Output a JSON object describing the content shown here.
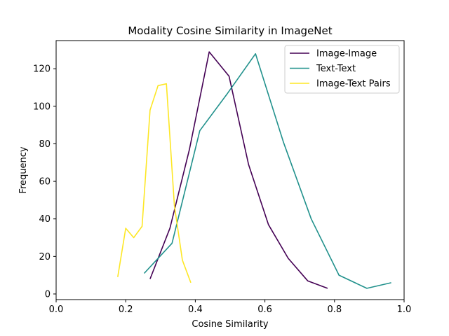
{
  "chart_data": {
    "type": "line",
    "title": "Modality Cosine Similarity in ImageNet",
    "xlabel": "Cosine Similarity",
    "ylabel": "Frequency",
    "xlim": [
      0.0,
      1.0
    ],
    "ylim": [
      -3,
      135
    ],
    "xticks": [
      0.0,
      0.2,
      0.4,
      0.6,
      0.8,
      1.0
    ],
    "xtick_labels": [
      "0.0",
      "0.2",
      "0.4",
      "0.6",
      "0.8",
      "1.0"
    ],
    "yticks": [
      0,
      20,
      40,
      60,
      80,
      100,
      120
    ],
    "ytick_labels": [
      "0",
      "20",
      "40",
      "60",
      "80",
      "100",
      "120"
    ],
    "grid": false,
    "legend_position": "top-right",
    "series": [
      {
        "name": "Image-Image",
        "color": "#440154",
        "x": [
          0.27,
          0.327,
          0.383,
          0.44,
          0.497,
          0.553,
          0.61,
          0.667,
          0.723,
          0.78
        ],
        "y": [
          8,
          35,
          77,
          129,
          116,
          69,
          37,
          19,
          7,
          3
        ]
      },
      {
        "name": "Text-Text",
        "color": "#21918c",
        "x": [
          0.253,
          0.333,
          0.413,
          0.493,
          0.573,
          0.653,
          0.733,
          0.813,
          0.893,
          0.963
        ],
        "y": [
          11,
          27,
          87,
          107,
          128,
          81,
          40,
          10,
          3,
          6
        ]
      },
      {
        "name": "Image-Text Pairs",
        "color": "#fde725",
        "x": [
          0.177,
          0.2,
          0.223,
          0.247,
          0.27,
          0.293,
          0.317,
          0.34,
          0.363,
          0.387
        ],
        "y": [
          9,
          35,
          30,
          36,
          98,
          111,
          112,
          47,
          18,
          6
        ]
      }
    ]
  }
}
